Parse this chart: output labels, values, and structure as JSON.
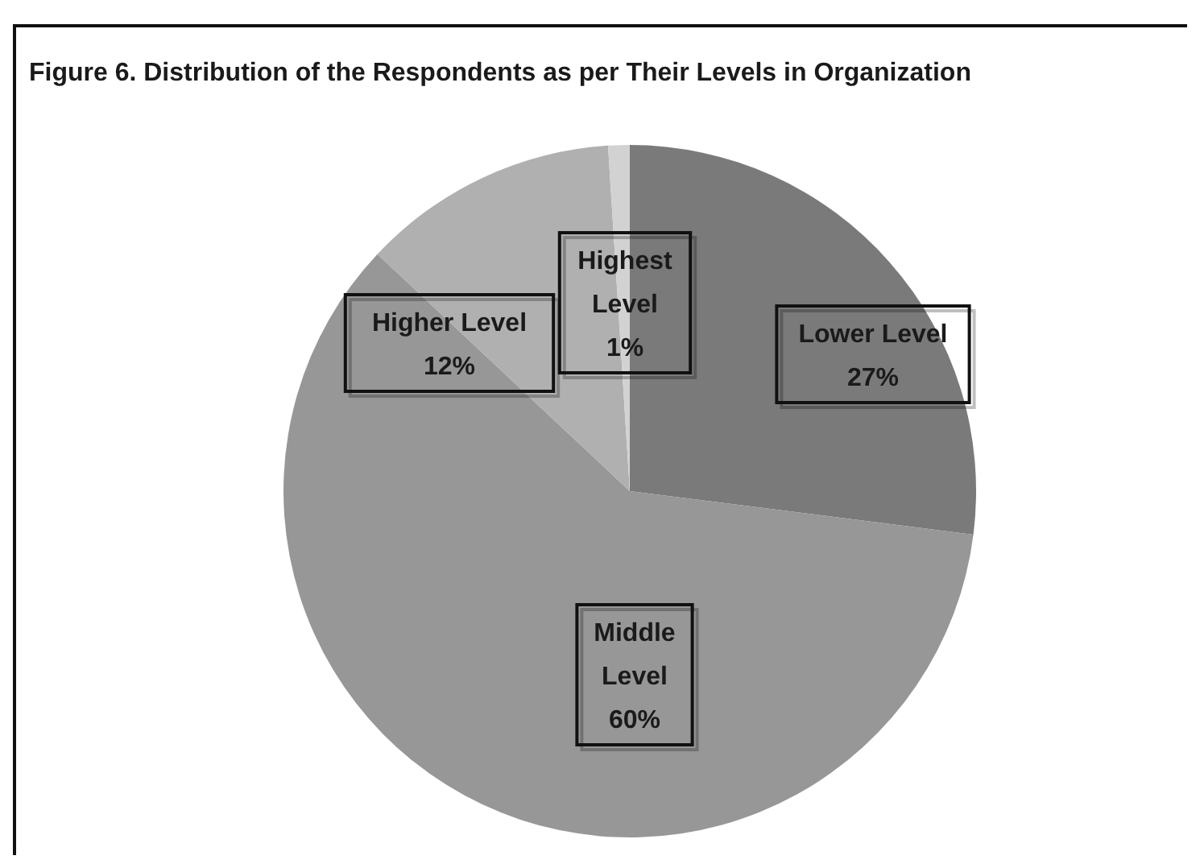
{
  "chart_data": {
    "type": "pie",
    "title": "Figure 6. Distribution of the Respondents as per Their Levels in Organization",
    "categories": [
      "Lower Level",
      "Middle Level",
      "Higher Level",
      "Highest Level"
    ],
    "values": [
      27,
      60,
      12,
      1
    ],
    "colors": [
      "#7a7a7a",
      "#979797",
      "#b0b0b0",
      "#d2d2d2"
    ],
    "value_labels": [
      "27%",
      "60%",
      "12%",
      "1%"
    ]
  }
}
